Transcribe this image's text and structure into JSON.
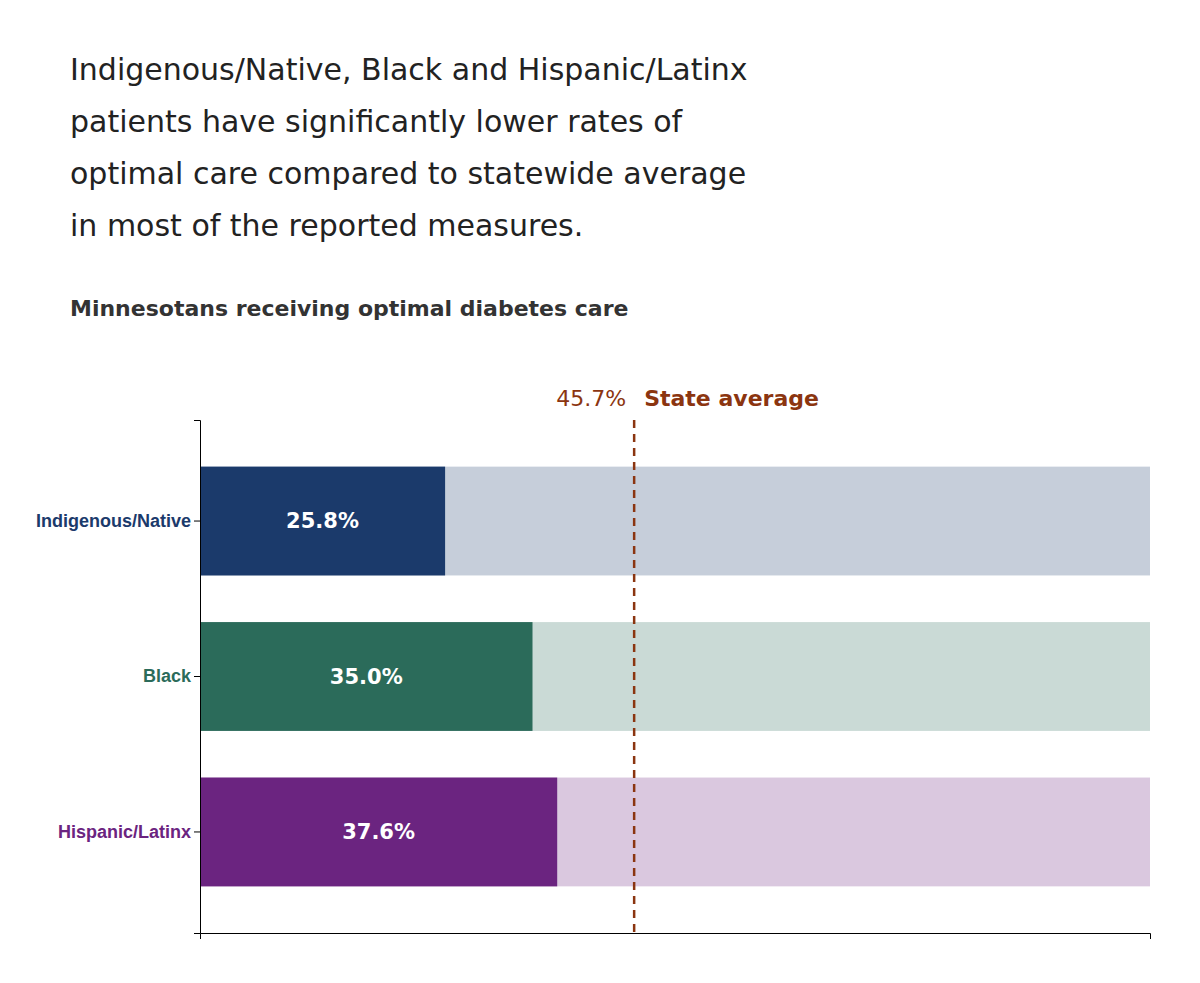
{
  "chart_data": {
    "type": "bar",
    "orientation": "horizontal",
    "title": [
      "Indigenous/Native, Black and Hispanic/Latinx",
      "patients have significantly lower rates of",
      "optimal care compared to statewide average",
      "in most of the reported measures."
    ],
    "subtitle": "Minnesotans receiving optimal diabetes care",
    "categories": [
      "Indigenous/Native",
      "Black",
      "Hispanic/Latinx"
    ],
    "values": [
      25.8,
      35.0,
      37.6
    ],
    "value_labels": [
      "25.8%",
      "35.0%",
      "37.6%"
    ],
    "colors": [
      "#1b3a6b",
      "#2b6b5a",
      "#6b2480"
    ],
    "data_labels": true,
    "xlim": [
      0,
      100
    ],
    "tick_labels": "y",
    "grid": false,
    "annotations": [
      {
        "text": "State average",
        "x": 45.7,
        "label": "45.7%",
        "color": "#8b3510"
      }
    ]
  }
}
